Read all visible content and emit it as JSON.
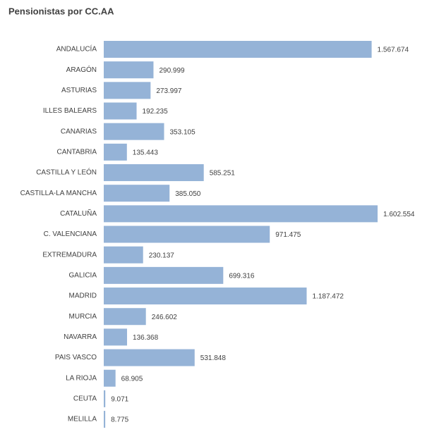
{
  "chart_data": {
    "type": "barh",
    "title": "Pensionistas por CC.AA",
    "categories": [
      "ANDALUCÍA",
      "ARAGÓN",
      "ASTURIAS",
      "ILLES BALEARS",
      "CANARIAS",
      "CANTABRIA",
      "CASTILLA Y LEÓN",
      "CASTILLA-LA MANCHA",
      "CATALUÑA",
      "C. VALENCIANA",
      "EXTREMADURA",
      "GALICIA",
      "MADRID",
      "MURCIA",
      "NAVARRA",
      "PAIS VASCO",
      "LA RIOJA",
      "CEUTA",
      "MELILLA"
    ],
    "values": [
      1567674,
      290999,
      273997,
      192235,
      353105,
      135443,
      585251,
      385050,
      1602554,
      971475,
      230137,
      699316,
      1187472,
      246602,
      136368,
      531848,
      68905,
      9071,
      8775
    ],
    "value_labels": [
      "1.567.674",
      "290.999",
      "273.997",
      "192.235",
      "353.105",
      "135.443",
      "585.251",
      "385.050",
      "1.602.554",
      "971.475",
      "230.137",
      "699.316",
      "1.187.472",
      "246.602",
      "136.368",
      "531.848",
      "68.905",
      "9.071",
      "8.775"
    ],
    "color": "#95b3d7"
  }
}
